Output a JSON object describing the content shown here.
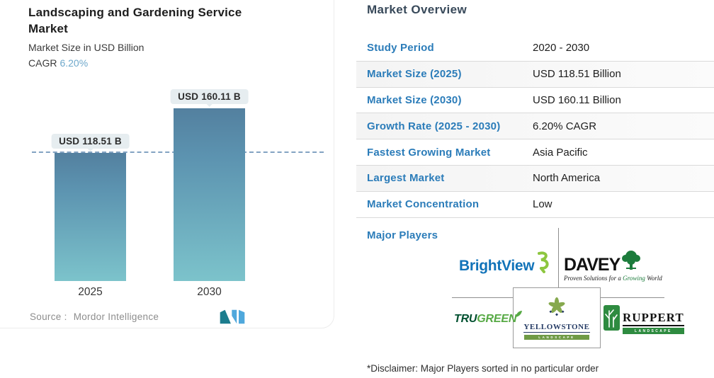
{
  "chart_panel": {
    "title": "Landscaping and Gardening Service Market",
    "subtitle": "Market Size in USD Billion",
    "cagr_label": "CAGR",
    "cagr_value": "6.20%",
    "source_label": "Source :",
    "source_name": "Mordor Intelligence"
  },
  "chart_data": {
    "type": "bar",
    "title": "Landscaping and Gardening Service Market",
    "ylabel": "Market Size in USD Billion",
    "categories": [
      "2025",
      "2030"
    ],
    "values": [
      118.51,
      160.11
    ],
    "value_labels": [
      "USD 118.51 B",
      "USD 160.11 B"
    ],
    "unit": "USD Billion",
    "cagr": "6.20%",
    "ylim": [
      0,
      170
    ],
    "reference_line": 118.51,
    "grid": false,
    "legend": "none",
    "bar_color_top": "#53809f",
    "bar_color_bottom": "#7cc3cb",
    "reference_line_color": "#6e94b8",
    "label_box_color": "#e6edf0"
  },
  "overview": {
    "heading": "Market Overview",
    "rows": [
      {
        "label": "Study Period",
        "value": "2020 - 2030"
      },
      {
        "label": "Market Size (2025)",
        "value": "USD 118.51 Billion"
      },
      {
        "label": "Market Size (2030)",
        "value": "USD 160.11 Billion"
      },
      {
        "label": "Growth Rate (2025 - 2030)",
        "value": "6.20% CAGR"
      },
      {
        "label": "Fastest Growing Market",
        "value": "Asia Pacific"
      },
      {
        "label": "Largest Market",
        "value": "North America"
      },
      {
        "label": "Market Concentration",
        "value": "Low"
      }
    ],
    "major_players_label": "Major Players",
    "players": {
      "brightview": {
        "name": "BrightView"
      },
      "davey": {
        "name": "DAVEY",
        "tagline_prefix": "Proven Solutions for a ",
        "tagline_highlight": "Growing",
        "tagline_suffix": " World"
      },
      "trugreen": {
        "part1": "TRU",
        "part2": "GREEN"
      },
      "yellowstone": {
        "name": "YELLOWSTONE",
        "subname": "LANDSCAPE"
      },
      "ruppert": {
        "name": "RUPPERT",
        "subname": "LANDSCAPE"
      }
    }
  },
  "disclaimer": "*Disclaimer: Major Players sorted in no particular order",
  "colors": {
    "accent_blue": "#2b7cb9",
    "heading_slate": "#38495a",
    "cagr_blue": "#6ea8cb",
    "row_alt_bg": "#f4f4f4",
    "row_divider": "#dadada",
    "connector_gray": "#8e8e8e",
    "brightview_blue": "#1173b9",
    "brightview_green": "#8dc63f",
    "davey_green": "#1c7c3c",
    "trugreen_dark_green": "#00502f",
    "trugreen_light_green": "#56a944",
    "yellowstone_green": "#6f9a45",
    "yellowstone_navy": "#243a64",
    "ruppert_green": "#2e8b40",
    "mordor_logo_teal": "#1c7d8e",
    "mordor_logo_blue": "#4fa8dc"
  }
}
